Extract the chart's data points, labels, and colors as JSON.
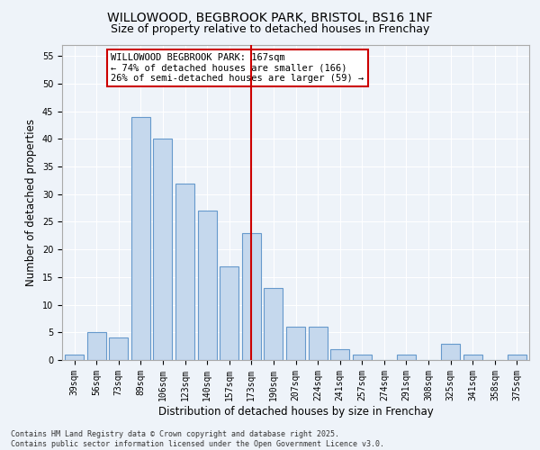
{
  "title_line1": "WILLOWOOD, BEGBROOK PARK, BRISTOL, BS16 1NF",
  "title_line2": "Size of property relative to detached houses in Frenchay",
  "xlabel": "Distribution of detached houses by size in Frenchay",
  "ylabel": "Number of detached properties",
  "categories": [
    "39sqm",
    "56sqm",
    "73sqm",
    "89sqm",
    "106sqm",
    "123sqm",
    "140sqm",
    "157sqm",
    "173sqm",
    "190sqm",
    "207sqm",
    "224sqm",
    "241sqm",
    "257sqm",
    "274sqm",
    "291sqm",
    "308sqm",
    "325sqm",
    "341sqm",
    "358sqm",
    "375sqm"
  ],
  "values": [
    1,
    5,
    4,
    44,
    40,
    32,
    27,
    17,
    23,
    13,
    6,
    6,
    2,
    1,
    0,
    1,
    0,
    3,
    1,
    0,
    1
  ],
  "bar_color": "#c5d8ed",
  "bar_edge_color": "#6699cc",
  "background_color": "#eef3f9",
  "grid_color": "#ffffff",
  "vline_x_index": 8,
  "vline_color": "#cc0000",
  "annotation_text": "WILLOWOOD BEGBROOK PARK: 167sqm\n← 74% of detached houses are smaller (166)\n26% of semi-detached houses are larger (59) →",
  "annotation_box_color": "#ffffff",
  "annotation_box_edge_color": "#cc0000",
  "ylim": [
    0,
    57
  ],
  "yticks": [
    0,
    5,
    10,
    15,
    20,
    25,
    30,
    35,
    40,
    45,
    50,
    55
  ],
  "footer_text": "Contains HM Land Registry data © Crown copyright and database right 2025.\nContains public sector information licensed under the Open Government Licence v3.0.",
  "title_fontsize": 10,
  "subtitle_fontsize": 9,
  "tick_fontsize": 7,
  "label_fontsize": 8.5,
  "annotation_fontsize": 7.5,
  "footer_fontsize": 6
}
